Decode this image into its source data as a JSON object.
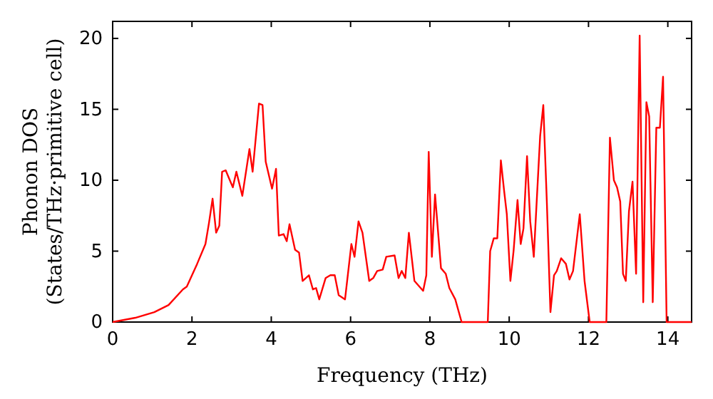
{
  "chart_data": {
    "type": "line",
    "xlabel": "Frequency (THz)",
    "ylabel": "Phonon DOS\n(States/THz·primitive cell)",
    "xlim": [
      0,
      14.6
    ],
    "ylim": [
      0,
      21.2
    ],
    "xticks": [
      0,
      2,
      4,
      6,
      8,
      10,
      12,
      14
    ],
    "yticks": [
      0,
      5,
      10,
      15,
      20
    ],
    "grid": false,
    "marker": "none",
    "line_style": "solid",
    "series": [
      {
        "color": "#ff0000",
        "x": [
          0,
          0.57,
          1.05,
          1.41,
          1.77,
          1.87,
          2.13,
          2.34,
          2.43,
          2.52,
          2.61,
          2.69,
          2.76,
          2.85,
          3.03,
          3.12,
          3.27,
          3.45,
          3.53,
          3.69,
          3.78,
          3.86,
          4.02,
          4.12,
          4.19,
          4.31,
          4.39,
          4.46,
          4.6,
          4.7,
          4.79,
          4.95,
          5.05,
          5.13,
          5.21,
          5.37,
          5.49,
          5.6,
          5.7,
          5.86,
          6.02,
          6.1,
          6.2,
          6.3,
          6.47,
          6.57,
          6.67,
          6.81,
          6.9,
          7.11,
          7.21,
          7.29,
          7.38,
          7.47,
          7.61,
          7.83,
          7.91,
          7.97,
          8.05,
          8.13,
          8.28,
          8.4,
          8.49,
          8.64,
          8.8,
          9.46,
          9.52,
          9.61,
          9.7,
          9.79,
          9.87,
          9.94,
          10.03,
          10.11,
          10.21,
          10.29,
          10.36,
          10.45,
          10.53,
          10.62,
          10.78,
          10.86,
          10.95,
          11.04,
          11.13,
          11.2,
          11.31,
          11.43,
          11.52,
          11.61,
          11.78,
          11.9,
          12.03,
          12.45,
          12.54,
          12.64,
          12.72,
          12.8,
          12.87,
          12.94,
          13.02,
          13.11,
          13.2,
          13.29,
          13.38,
          13.46,
          13.53,
          13.62,
          13.71,
          13.8,
          13.88,
          13.97,
          14.6
        ],
        "values": [
          0,
          0.3,
          0.7,
          1.2,
          2.3,
          2.5,
          4.1,
          5.5,
          7.0,
          8.7,
          6.3,
          6.8,
          10.6,
          10.7,
          9.5,
          10.6,
          8.9,
          12.2,
          10.6,
          15.4,
          15.3,
          11.3,
          9.4,
          10.8,
          6.1,
          6.2,
          5.7,
          6.9,
          5.1,
          4.9,
          2.9,
          3.3,
          2.3,
          2.4,
          1.6,
          3.1,
          3.3,
          3.3,
          1.9,
          1.6,
          5.5,
          4.6,
          7.1,
          6.3,
          2.9,
          3.1,
          3.6,
          3.7,
          4.6,
          4.7,
          3.1,
          3.6,
          3.1,
          6.3,
          2.9,
          2.2,
          3.3,
          12.0,
          4.6,
          9.0,
          3.8,
          3.4,
          2.4,
          1.6,
          0,
          0,
          5.0,
          5.9,
          5.9,
          11.4,
          9.3,
          7.6,
          2.9,
          5.0,
          8.6,
          5.5,
          6.6,
          11.7,
          7.1,
          4.6,
          13.1,
          15.3,
          8.4,
          0.7,
          3.3,
          3.6,
          4.5,
          4.1,
          3.0,
          3.6,
          7.6,
          2.9,
          0,
          0,
          13.0,
          10.0,
          9.5,
          8.5,
          3.4,
          2.9,
          7.8,
          9.9,
          3.4,
          20.2,
          1.4,
          15.5,
          14.5,
          1.4,
          13.7,
          13.7,
          17.3,
          0,
          0
        ]
      }
    ]
  }
}
